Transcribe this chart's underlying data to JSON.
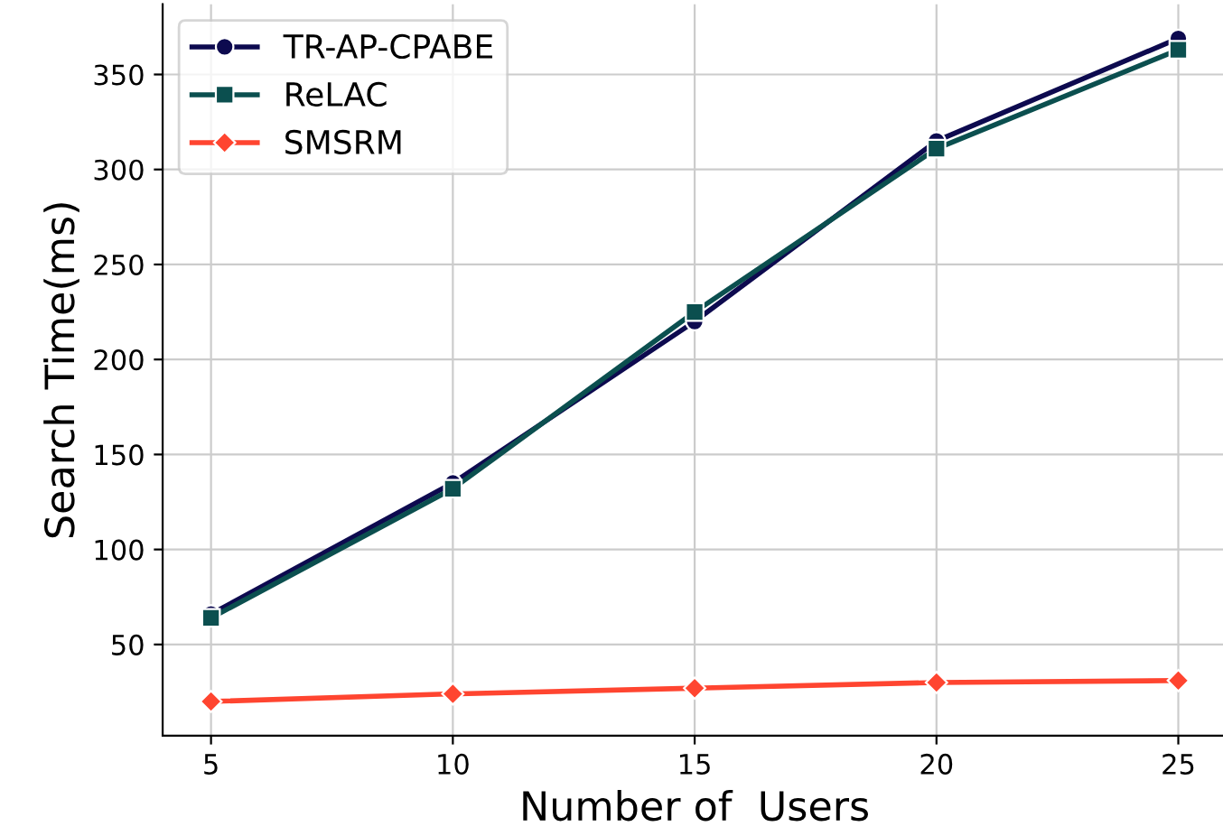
{
  "chart_data": {
    "type": "line",
    "xlabel": "Number of  Users",
    "ylabel": "Search Time(ms)",
    "x": [
      5,
      10,
      15,
      20,
      25
    ],
    "series": [
      {
        "name": "TR-AP-CPABE",
        "color": "#0d0a4f",
        "marker": "circle",
        "values": [
          66,
          135,
          220,
          315,
          369
        ]
      },
      {
        "name": "ReLAC",
        "color": "#0b4f4f",
        "marker": "square",
        "values": [
          64,
          132,
          225,
          311,
          363
        ]
      },
      {
        "name": "SMSRM",
        "color": "#ff4530",
        "marker": "diamond",
        "values": [
          20,
          24,
          27,
          30,
          31
        ]
      }
    ],
    "xlim": [
      4,
      26
    ],
    "xticks": [
      5,
      10,
      15,
      20,
      25
    ],
    "ylim": [
      2,
      387
    ],
    "yticks": [
      50,
      100,
      150,
      200,
      250,
      300,
      350
    ],
    "grid": true,
    "legend": "top left",
    "line_style": "solid"
  }
}
